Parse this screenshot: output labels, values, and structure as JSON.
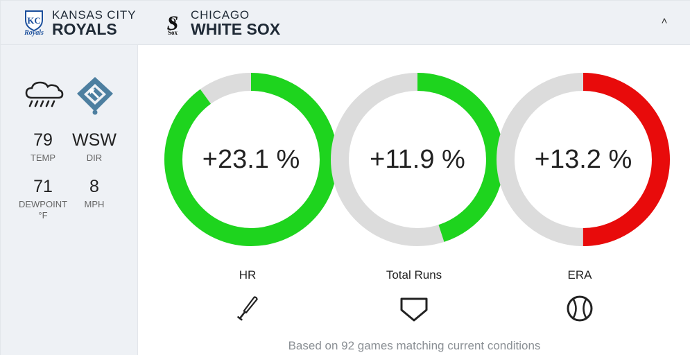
{
  "header": {
    "home_team": {
      "city": "KANSAS CITY",
      "name": "ROYALS",
      "logo_icon": "royals-logo",
      "logo_text": "Royals"
    },
    "away_team": {
      "city": "CHICAGO",
      "name": "WHITE SOX",
      "logo_icon": "white-sox-logo",
      "logo_text": "Sox"
    },
    "collapse_icon": "˄"
  },
  "conditions": {
    "weather_icon": "rain-cloud-icon",
    "field_icon": "wind-direction-field-icon",
    "temp": {
      "value": "79",
      "label": "TEMP"
    },
    "dir": {
      "value": "WSW",
      "label": "DIR"
    },
    "dewpoint": {
      "value": "71",
      "label": "DEWPOINT",
      "unit": "°F"
    },
    "mph": {
      "value": "8",
      "label": "MPH"
    }
  },
  "metrics": [
    {
      "label": "HR",
      "value_text": "+23.1 %",
      "fill_fraction": 0.9,
      "color": "#1ed41e",
      "icon": "baseball-bat-icon"
    },
    {
      "label": "Total Runs",
      "value_text": "+11.9 %",
      "fill_fraction": 0.45,
      "color": "#1ed41e",
      "icon": "home-plate-icon"
    },
    {
      "label": "ERA",
      "value_text": "+13.2 %",
      "fill_fraction": 0.5,
      "color": "#e80b0b",
      "icon": "baseball-icon"
    }
  ],
  "colors": {
    "track": "#dcdcdc",
    "positive": "#1ed41e",
    "negative": "#e80b0b",
    "header_bg": "#eef1f5"
  },
  "footnote": "Based on 92 games matching current conditions"
}
